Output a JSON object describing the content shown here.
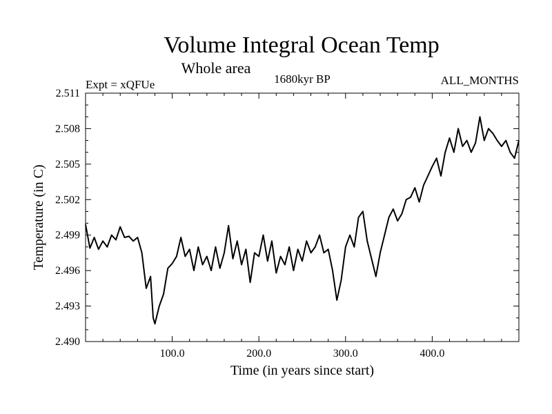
{
  "chart_data": {
    "type": "line",
    "title": "Volume Integral Ocean Temp",
    "subtitle": "Whole area",
    "left_label": "Expt = xQFUe",
    "center_label": "1680kyr BP",
    "right_label": "ALL_MONTHS",
    "xlabel": "Time (in years since start)",
    "ylabel": "Temperature (in C)",
    "xlim": [
      0,
      500
    ],
    "ylim": [
      2.49,
      2.511
    ],
    "xticks": [
      100,
      200,
      300,
      400
    ],
    "xtick_labels": [
      "100.0",
      "200.0",
      "300.0",
      "400.0"
    ],
    "yticks": [
      2.49,
      2.493,
      2.496,
      2.499,
      2.502,
      2.505,
      2.508,
      2.511
    ],
    "ytick_labels": [
      "2.490",
      "2.493",
      "2.496",
      "2.499",
      "2.502",
      "2.505",
      "2.508",
      "2.511"
    ],
    "series": [
      {
        "name": "Volume Integral Ocean Temp",
        "color": "#000000",
        "x": [
          0,
          5,
          10,
          15,
          20,
          25,
          30,
          35,
          40,
          45,
          50,
          55,
          60,
          65,
          70,
          75,
          78,
          80,
          85,
          90,
          95,
          100,
          105,
          110,
          115,
          120,
          125,
          130,
          135,
          140,
          145,
          150,
          155,
          160,
          165,
          170,
          175,
          180,
          185,
          190,
          195,
          200,
          205,
          210,
          215,
          220,
          225,
          230,
          235,
          240,
          245,
          250,
          255,
          260,
          265,
          270,
          275,
          280,
          285,
          290,
          295,
          300,
          305,
          310,
          315,
          320,
          325,
          330,
          335,
          340,
          345,
          350,
          355,
          360,
          365,
          370,
          375,
          380,
          385,
          390,
          395,
          400,
          405,
          410,
          415,
          420,
          425,
          430,
          435,
          440,
          445,
          450,
          455,
          460,
          465,
          470,
          475,
          480,
          485,
          490,
          495,
          500
        ],
        "y": [
          2.4999,
          2.4979,
          2.4988,
          2.4978,
          2.4985,
          2.498,
          2.499,
          2.4986,
          2.4997,
          2.4988,
          2.4989,
          2.4985,
          2.4988,
          2.4975,
          2.4945,
          2.4955,
          2.492,
          2.4915,
          2.493,
          2.494,
          2.4962,
          2.4966,
          2.4972,
          2.4988,
          2.4972,
          2.4978,
          2.496,
          2.498,
          2.4965,
          2.4972,
          2.496,
          2.498,
          2.4962,
          2.4975,
          2.4998,
          2.497,
          2.4985,
          2.4965,
          2.4978,
          2.495,
          2.4975,
          2.4972,
          2.499,
          2.4968,
          2.4985,
          2.4958,
          2.4972,
          2.4965,
          2.498,
          2.496,
          2.4978,
          2.4968,
          2.4985,
          2.4975,
          2.498,
          2.499,
          2.4975,
          2.4978,
          2.496,
          2.4935,
          2.4952,
          2.498,
          2.499,
          2.498,
          2.5005,
          2.501,
          2.4985,
          2.497,
          2.4955,
          2.4975,
          2.499,
          2.5005,
          2.5012,
          2.5002,
          2.5008,
          2.502,
          2.5022,
          2.503,
          2.5018,
          2.5032,
          2.504,
          2.5048,
          2.5055,
          2.504,
          2.506,
          2.5072,
          2.506,
          2.508,
          2.5065,
          2.507,
          2.506,
          2.5068,
          2.509,
          2.507,
          2.508,
          2.5076,
          2.507,
          2.5065,
          2.507,
          2.506,
          2.5055,
          2.507
        ]
      }
    ]
  }
}
